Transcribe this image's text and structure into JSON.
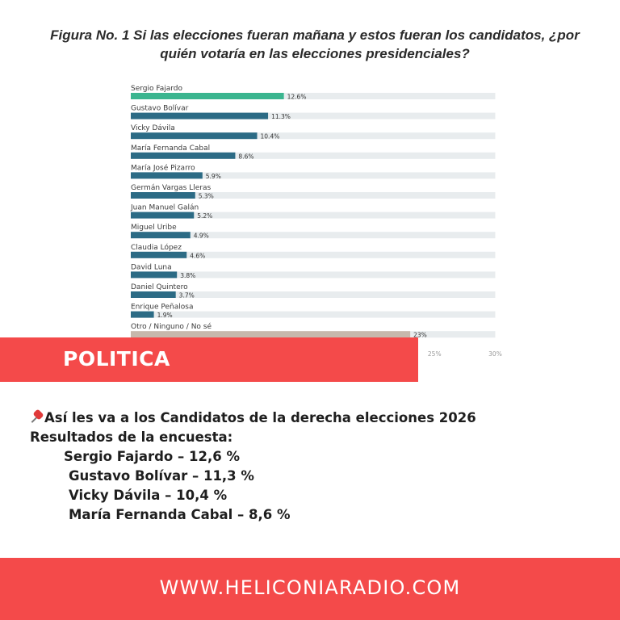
{
  "chart_data": {
    "type": "bar",
    "orientation": "horizontal",
    "title_lines": [
      "Figura No. 1 Si las elecciones fueran mañana y estos fueran los candidatos, ¿por",
      "quién votaría en las elecciones presidenciales?"
    ],
    "categories": [
      "Sergio Fajardo",
      "Gustavo Bolívar",
      "Vicky Dávila",
      "María Fernanda Cabal",
      "María José Pizarro",
      "Germán Vargas Lleras",
      "Juan Manuel Galán",
      "Miguel Uribe",
      "Claudia López",
      "David Luna",
      "Daniel Quintero",
      "Enrique Peñalosa",
      "Otro / Ninguno / No sé"
    ],
    "values": [
      12.6,
      11.3,
      10.4,
      8.6,
      5.9,
      5.3,
      5.2,
      4.9,
      4.6,
      3.8,
      3.7,
      1.9,
      23
    ],
    "value_labels": [
      "12.6%",
      "11.3%",
      "10.4%",
      "8.6%",
      "5.9%",
      "5.3%",
      "5.2%",
      "4.9%",
      "4.6%",
      "3.8%",
      "3.7%",
      "1.9%",
      "23%"
    ],
    "colors": [
      "#3bb58f",
      "#2c6b85",
      "#2c6b85",
      "#2c6b85",
      "#2c6b85",
      "#2c6b85",
      "#2c6b85",
      "#2c6b85",
      "#2c6b85",
      "#2c6b85",
      "#2c6b85",
      "#2c6b85",
      "#c7b8ac"
    ],
    "track_color": "#e8ecee",
    "xlim": [
      0,
      30
    ],
    "visible_ticks": [
      25,
      30
    ],
    "visible_tick_labels": [
      "25%",
      "30%"
    ]
  },
  "banner": {
    "label": "POLITICA",
    "color": "#f44a4a"
  },
  "caption": {
    "headline": "Así les va a los Candidatos  de la derecha elecciones 2026",
    "subhead": "Resultados de la encuesta:",
    "results": [
      "Sergio Fajardo – 12,6 %",
      "Gustavo Bolívar – 11,3 %",
      "Vicky Dávila – 10,4 %",
      "María Fernanda Cabal – 8,6 %"
    ]
  },
  "footer": {
    "url": "WWW.HELICONIARADIO.COM",
    "color": "#f44a4a"
  }
}
